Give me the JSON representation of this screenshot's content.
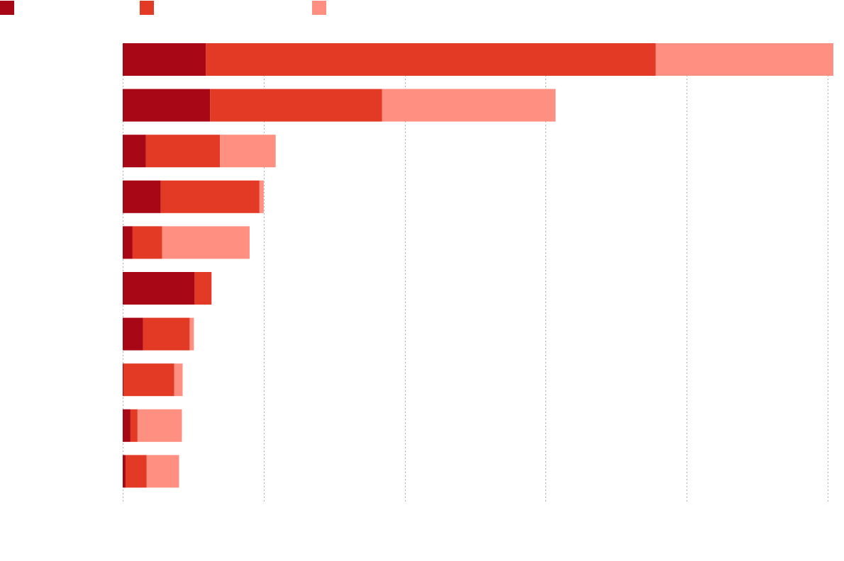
{
  "chart_data": {
    "type": "bar",
    "orientation": "horizontal",
    "stacked": true,
    "categories": [
      "",
      "",
      "",
      "",
      "",
      "",
      "",
      "",
      "",
      ""
    ],
    "series": [
      {
        "color": "#a80816",
        "values": [
          5.9,
          6.2,
          1.65,
          2.7,
          0.7,
          5.1,
          1.45,
          0.05,
          0.55,
          0.2
        ]
      },
      {
        "color": "#e33a25",
        "values": [
          31.9,
          12.2,
          5.25,
          7.0,
          2.1,
          1.2,
          3.3,
          3.6,
          0.5,
          1.5
        ]
      },
      {
        "color": "#ff9081",
        "values": [
          12.6,
          12.3,
          3.95,
          0.3,
          6.2,
          0,
          0.3,
          0.6,
          3.15,
          2.3
        ]
      }
    ],
    "xlim": [
      0,
      50
    ],
    "gridlines": [
      0,
      10,
      20,
      30,
      40,
      50
    ],
    "grid": true,
    "legend_position": "top-left"
  }
}
